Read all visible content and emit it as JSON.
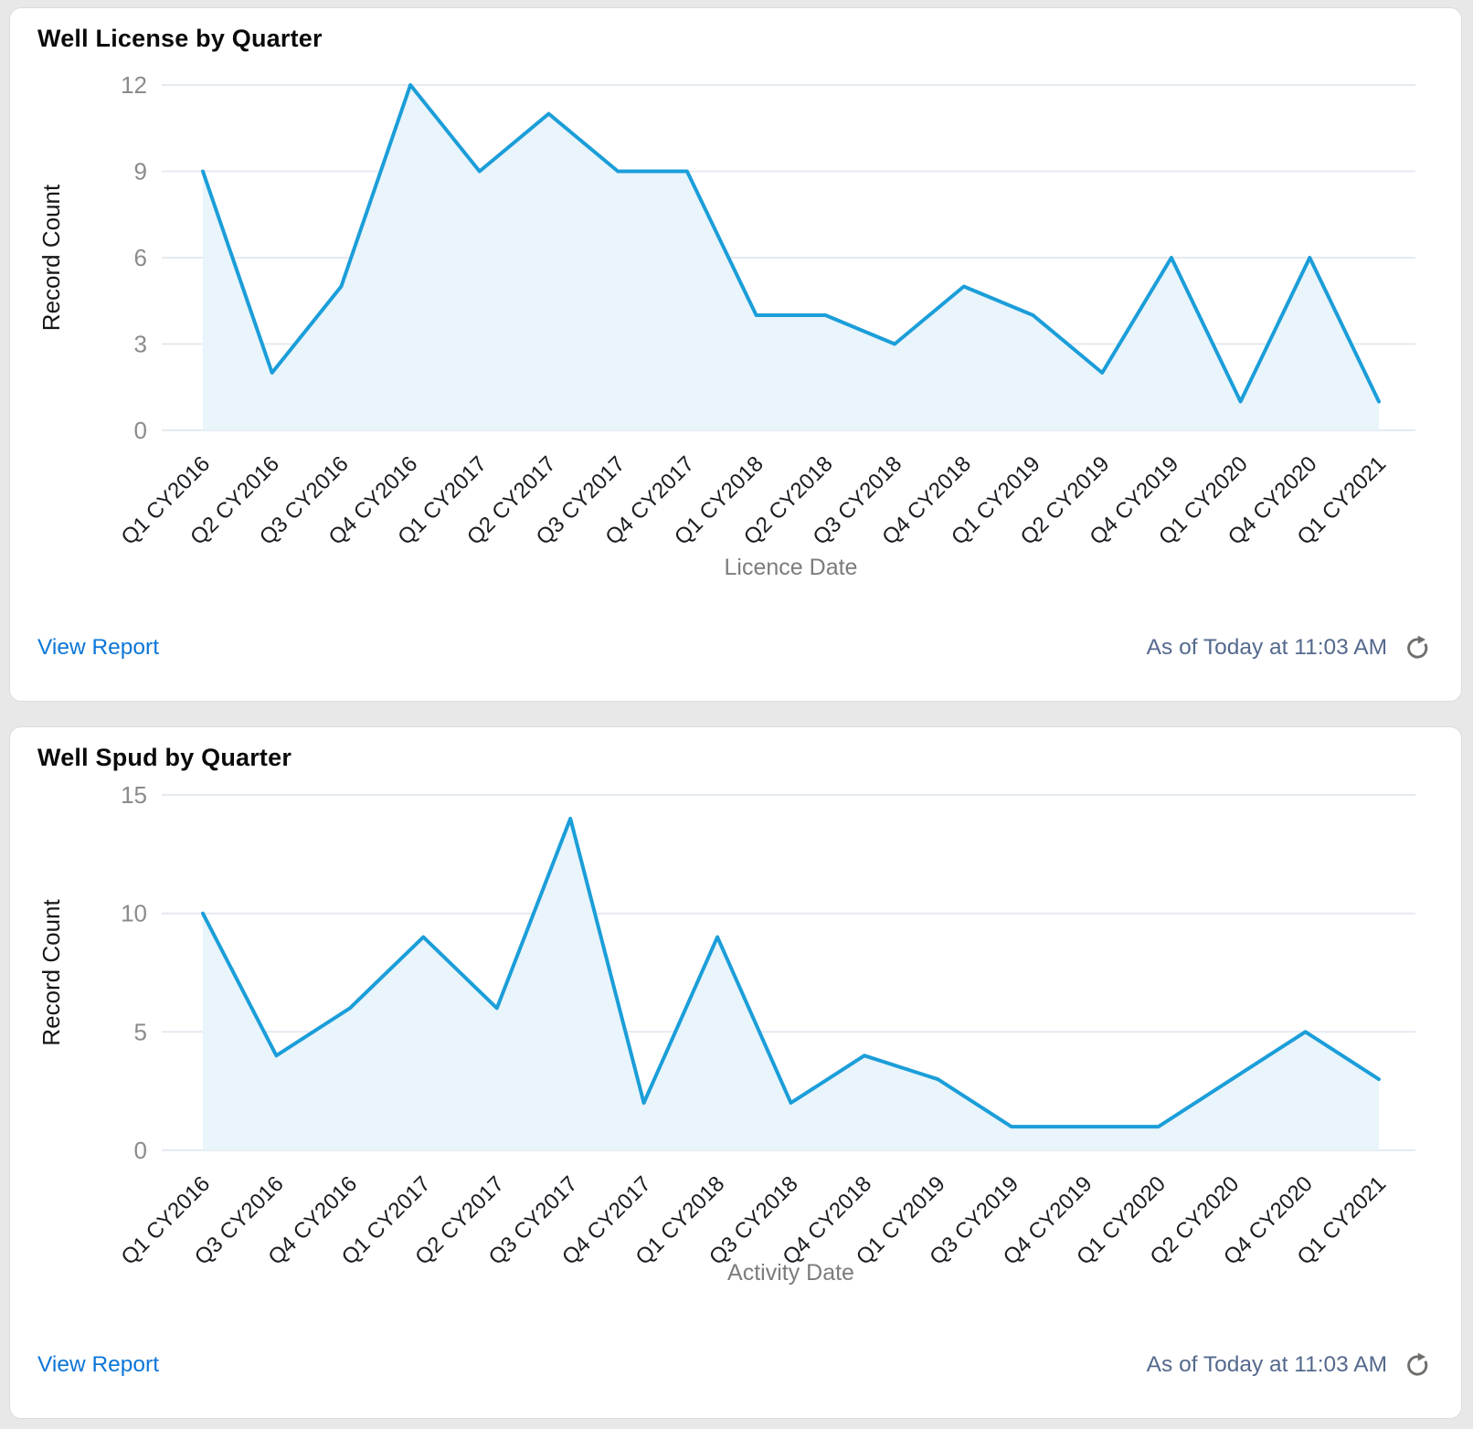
{
  "ui": {
    "footer": {
      "view_report_label": "View Report",
      "as_of_text": "As of Today at 11:03 AM"
    },
    "colors": {
      "page_background": "#e8e8e8",
      "card_border": "#dcdcdc",
      "link": "#0b76d8",
      "as_of_text": "#54698d",
      "refresh_icon": "#706e6b",
      "line": "#1b9ed9",
      "area_fill": "#e9f4fb",
      "grid": "#e5eaf0"
    }
  },
  "chart_data": [
    {
      "type": "area",
      "title": "Well License by Quarter",
      "categories": [
        "Q1 CY2016",
        "Q2 CY2016",
        "Q3 CY2016",
        "Q4 CY2016",
        "Q1 CY2017",
        "Q2 CY2017",
        "Q3 CY2017",
        "Q4 CY2017",
        "Q1 CY2018",
        "Q2 CY2018",
        "Q3 CY2018",
        "Q4 CY2018",
        "Q1 CY2019",
        "Q2 CY2019",
        "Q4 CY2019",
        "Q1 CY2020",
        "Q4 CY2020",
        "Q1 CY2021"
      ],
      "values": [
        9,
        2,
        5,
        12,
        9,
        11,
        9,
        9,
        4,
        4,
        3,
        5,
        4,
        2,
        6,
        1,
        6,
        1
      ],
      "xlabel": "Licence Date",
      "ylabel": "Record Count",
      "ylim": [
        0,
        12
      ],
      "yticks": [
        0,
        3,
        6,
        9,
        12
      ],
      "grid": true,
      "legend": false
    },
    {
      "type": "area",
      "title": "Well Spud by Quarter",
      "categories": [
        "Q1 CY2016",
        "Q3 CY2016",
        "Q4 CY2016",
        "Q1 CY2017",
        "Q2 CY2017",
        "Q3 CY2017",
        "Q4 CY2017",
        "Q1 CY2018",
        "Q3 CY2018",
        "Q4 CY2018",
        "Q1 CY2019",
        "Q3 CY2019",
        "Q4 CY2019",
        "Q1 CY2020",
        "Q2 CY2020",
        "Q4 CY2020",
        "Q1 CY2021"
      ],
      "values": [
        10,
        4,
        6,
        9,
        6,
        14,
        2,
        9,
        2,
        4,
        3,
        1,
        1,
        1,
        3,
        5,
        3
      ],
      "xlabel": "Activity Date",
      "ylabel": "Record Count",
      "ylim": [
        0,
        15
      ],
      "yticks": [
        0,
        5,
        10,
        15
      ],
      "grid": true,
      "legend": false
    }
  ]
}
